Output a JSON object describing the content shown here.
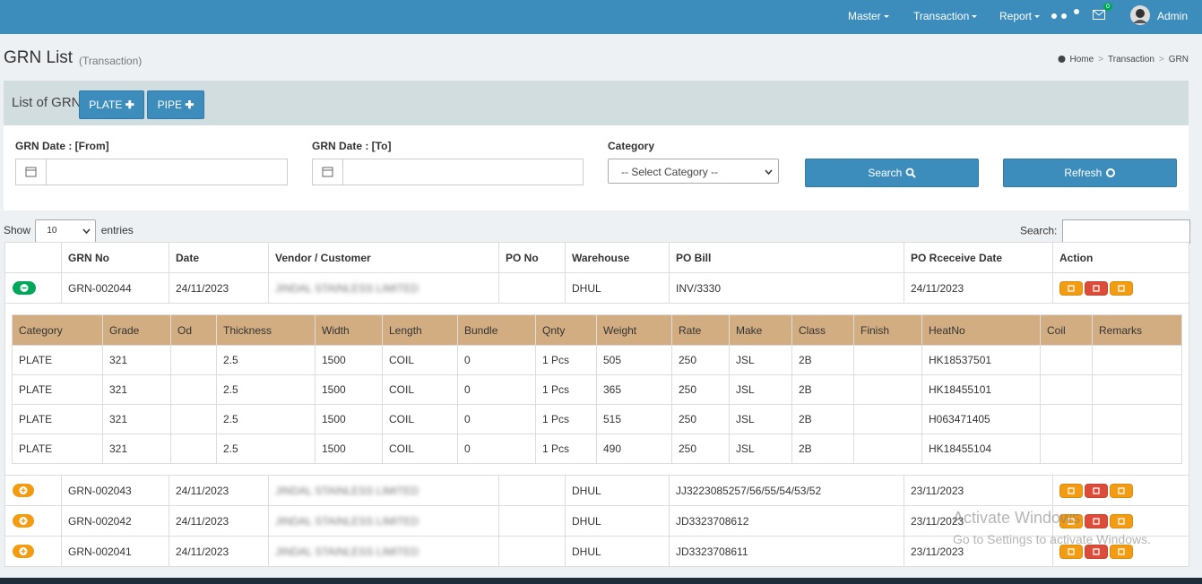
{
  "nav": {
    "items": [
      "Master",
      "Transaction",
      "Report"
    ],
    "badge": "0",
    "user": "Admin"
  },
  "header": {
    "title": "GRN List",
    "subtitle": "(Transaction)",
    "breadcrumb": [
      "Home",
      "Transaction",
      "GRN"
    ]
  },
  "panel": {
    "title": "List of GRN",
    "buttons": [
      "PLATE",
      "PIPE"
    ]
  },
  "filters": {
    "from_label": "GRN Date : [From]",
    "to_label": "GRN Date : [To]",
    "category_label": "Category",
    "category_placeholder": "-- Select Category --",
    "search_button": "Search",
    "refresh_button": "Refresh"
  },
  "table_controls": {
    "show": "Show",
    "entries_value": "10",
    "entries": "entries",
    "search": "Search:"
  },
  "table": {
    "columns": [
      "GRN No",
      "Date",
      "Vendor / Customer",
      "PO No",
      "Warehouse",
      "PO Bill",
      "PO Rceceive Date",
      "Action"
    ],
    "rows": [
      {
        "grn_no": "GRN-002044",
        "date": "24/11/2023",
        "vendor": "JINDAL STAINLESS LIMITED",
        "warehouse": "DHUL",
        "po_bill": "INV/3330",
        "receive_date": "24/11/2023",
        "expanded": true,
        "details": [
          {
            "category": "PLATE",
            "grade": "321",
            "thickness": "2.5",
            "width": "1500",
            "length": "COIL",
            "bundle": "0",
            "qnty": "1 Pcs",
            "weight": "505",
            "rate": "250",
            "make": "JSL",
            "class": "2B",
            "heatno": "HK18537501"
          },
          {
            "category": "PLATE",
            "grade": "321",
            "thickness": "2.5",
            "width": "1500",
            "length": "COIL",
            "bundle": "0",
            "qnty": "1 Pcs",
            "weight": "365",
            "rate": "250",
            "make": "JSL",
            "class": "2B",
            "heatno": "HK18455101"
          },
          {
            "category": "PLATE",
            "grade": "321",
            "thickness": "2.5",
            "width": "1500",
            "length": "COIL",
            "bundle": "0",
            "qnty": "1 Pcs",
            "weight": "515",
            "rate": "250",
            "make": "JSL",
            "class": "2B",
            "heatno": "H063471405"
          },
          {
            "category": "PLATE",
            "grade": "321",
            "thickness": "2.5",
            "width": "1500",
            "length": "COIL",
            "bundle": "0",
            "qnty": "1 Pcs",
            "weight": "490",
            "rate": "250",
            "make": "JSL",
            "class": "2B",
            "heatno": "HK18455104"
          }
        ]
      },
      {
        "grn_no": "GRN-002043",
        "date": "24/11/2023",
        "vendor": "JINDAL STAINLESS LIMITED",
        "warehouse": "DHUL",
        "po_bill": "JJ3223085257/56/55/54/53/52",
        "receive_date": "23/11/2023",
        "expanded": false
      },
      {
        "grn_no": "GRN-002042",
        "date": "24/11/2023",
        "vendor": "JINDAL STAINLESS LIMITED",
        "warehouse": "DHUL",
        "po_bill": "JD3323708612",
        "receive_date": "23/11/2023",
        "expanded": false
      },
      {
        "grn_no": "GRN-002041",
        "date": "24/11/2023",
        "vendor": "JINDAL STAINLESS LIMITED",
        "warehouse": "DHUL",
        "po_bill": "JD3323708611",
        "receive_date": "23/11/2023",
        "expanded": false
      }
    ],
    "detail_columns": [
      "Category",
      "Grade",
      "Od",
      "Thickness",
      "Width",
      "Length",
      "Bundle",
      "Qnty",
      "Weight",
      "Rate",
      "Make",
      "Class",
      "Finish",
      "HeatNo",
      "Coil",
      "Remarks"
    ]
  },
  "watermark": {
    "title": "Activate Windows",
    "subtitle": "Go to Settings to activate Windows."
  }
}
